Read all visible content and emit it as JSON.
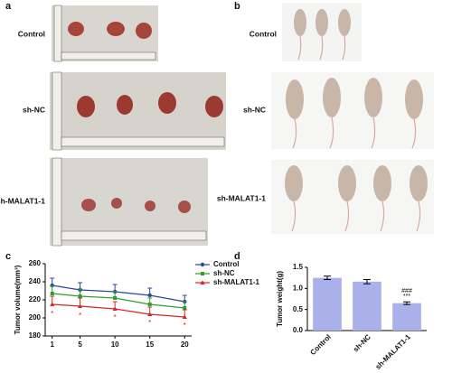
{
  "panels": {
    "a": {
      "label": "a",
      "rows": [
        "Control",
        "sh-NC",
        "sh-MALAT1-1"
      ]
    },
    "b": {
      "label": "b",
      "rows": [
        "Control",
        "sh-NC",
        "sh-MALAT1-1"
      ]
    },
    "c": {
      "label": "c"
    },
    "d": {
      "label": "d"
    }
  },
  "chart_data": [
    {
      "type": "line",
      "y_label": "Tumor volume(mm³)",
      "x": [
        1,
        5,
        10,
        15,
        20
      ],
      "xlim": [
        0,
        21
      ],
      "xticks": [
        1,
        5,
        10,
        15,
        20
      ],
      "ylim": [
        180,
        260
      ],
      "yticks": [
        180,
        200,
        220,
        240,
        260
      ],
      "series": [
        {
          "name": "Control",
          "color": "#2a47a3",
          "marker": "circle",
          "values": [
            236,
            231,
            229,
            225,
            218
          ],
          "errors": [
            8,
            8,
            8,
            8,
            7
          ]
        },
        {
          "name": "sh-NC",
          "color": "#2ca02c",
          "marker": "square",
          "values": [
            227,
            224,
            222,
            215,
            211
          ],
          "errors": [
            8,
            8,
            7,
            7,
            7
          ]
        },
        {
          "name": "sh-MALAT1-1",
          "color": "#d62728",
          "marker": "triangle",
          "values": [
            215,
            213,
            210,
            204,
            201
          ],
          "errors": [
            9,
            9,
            8,
            8,
            8
          ],
          "significance": [
            "*",
            "*",
            "*",
            "*",
            "*"
          ]
        }
      ]
    },
    {
      "type": "bar",
      "y_label": "Tumor weight(g)",
      "categories": [
        "Control",
        "sh-NC",
        "sh-MALAT1-1"
      ],
      "values": [
        1.25,
        1.16,
        0.65
      ],
      "errors": [
        0.04,
        0.05,
        0.03
      ],
      "color": "#aab0ea",
      "ylim": [
        0,
        1.5
      ],
      "yticks": [
        {
          "value": 0,
          "label": "0.0"
        },
        {
          "value": 0.5,
          "label": "0.5"
        },
        {
          "value": 1,
          "label": "1.0"
        },
        {
          "value": 1.5,
          "label": "1.5"
        }
      ],
      "annotations": [
        "###",
        "***"
      ]
    }
  ]
}
